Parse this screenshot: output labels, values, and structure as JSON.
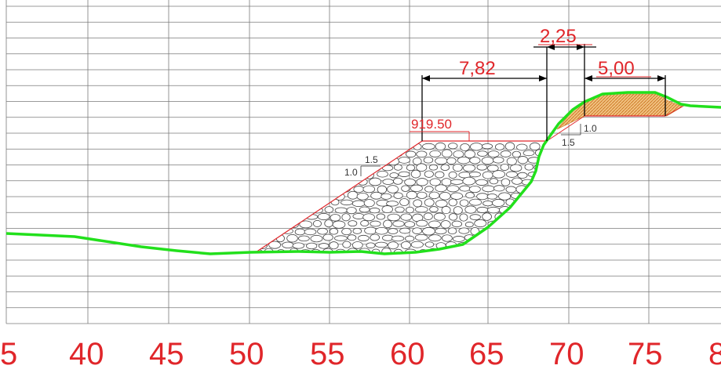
{
  "axis_labels": [
    "5",
    "40",
    "45",
    "50",
    "55",
    "60",
    "65",
    "70",
    "75",
    "8"
  ],
  "dimensions": {
    "d1": "2,25",
    "d2": "7,82",
    "d3": "5,00"
  },
  "elevation_label": "919.50",
  "slope_labels": {
    "left_h": "1.5",
    "left_v": "1.0",
    "right_h": "1.5",
    "right_v": "1.0"
  },
  "colors": {
    "ground": "#22e01c",
    "annotation": "#e0262a",
    "fill_hatch": "#e8a64a",
    "riprap_outline": "#333333"
  }
}
